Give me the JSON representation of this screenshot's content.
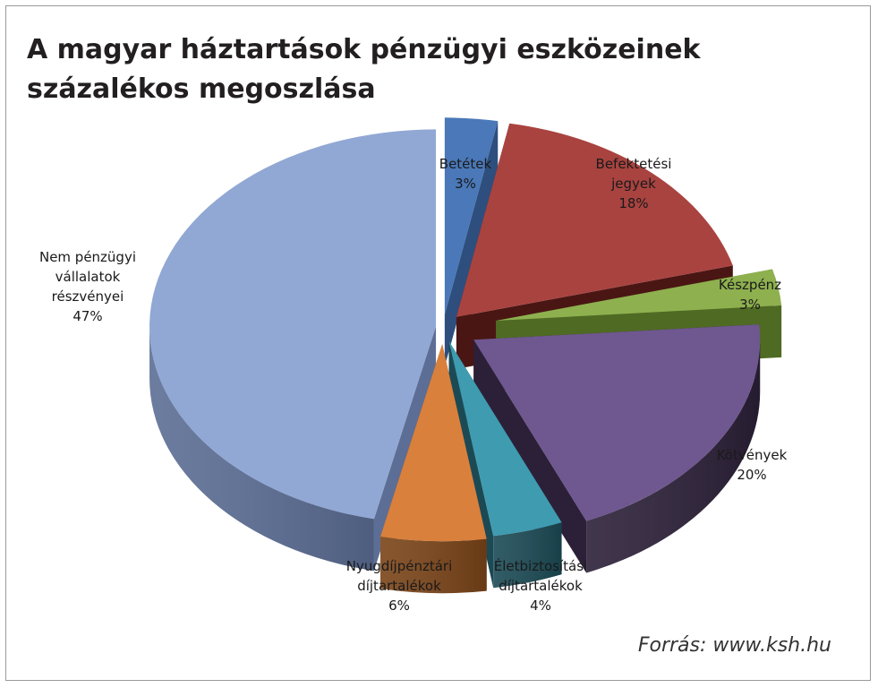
{
  "title_line1": "A magyar háztartások pénzügyi eszközeinek",
  "title_line2": "százalékos megoszlása",
  "source": "Forrás: www.ksh.hu",
  "chart_data": {
    "type": "pie",
    "title": "A magyar háztartások pénzügyi eszközeinek százalékos megoszlása",
    "style": "3d-exploded",
    "slices": [
      {
        "label": [
          "Betétek"
        ],
        "pct_label": "3%",
        "value": 3,
        "color": "#4a78b8",
        "side": "#2e4f7e"
      },
      {
        "label": [
          "Befektetési",
          "jegyek"
        ],
        "pct_label": "18%",
        "value": 18,
        "color": "#a94340",
        "side": "#4a1614"
      },
      {
        "label": [
          "Készpénz"
        ],
        "pct_label": "3%",
        "value": 3,
        "color": "#8eb04f",
        "side": "#4f6a23"
      },
      {
        "label": [
          "Kötvények"
        ],
        "pct_label": "20%",
        "value": 20,
        "color": "#6f5790",
        "side": "#2c2038"
      },
      {
        "label": [
          "Életbiztosítási",
          "díjtartalékok"
        ],
        "pct_label": "4%",
        "value": 4,
        "color": "#3f9bb0",
        "side": "#1b4a55"
      },
      {
        "label": [
          "Nyugdíjpénztári",
          "díjtartalékok"
        ],
        "pct_label": "6%",
        "value": 6,
        "color": "#d9803d",
        "side": "#7a4418"
      },
      {
        "label": [
          "Nem pénzügyi",
          "vállalatok",
          "részvényei"
        ],
        "pct_label": "47%",
        "value": 47,
        "color": "#91a8d4",
        "side": "#5c6e95"
      }
    ]
  }
}
